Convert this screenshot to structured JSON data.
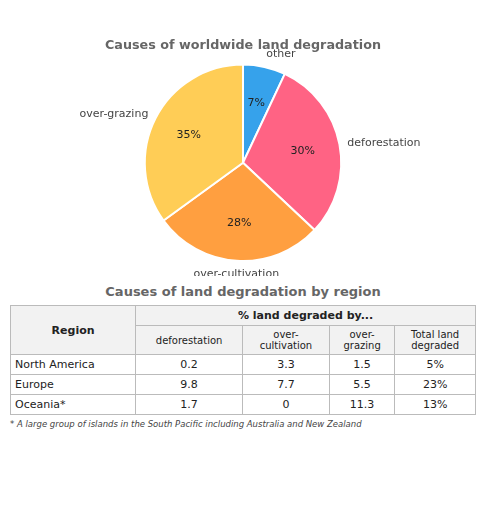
{
  "chart_data": [
    {
      "type": "pie",
      "title": "Causes of worldwide land degradation",
      "categories": [
        "other",
        "deforestation",
        "over-cultivation",
        "over-grazing"
      ],
      "values": [
        7,
        30,
        28,
        35
      ],
      "value_labels": [
        "7%",
        "30%",
        "28%",
        "35%"
      ],
      "data_labels": true
    },
    {
      "type": "table",
      "title": "Causes of land degradation by region",
      "group_header": "% land degraded by...",
      "columns": [
        "Region",
        "deforestation",
        "over-\ncultivation",
        "over-\ngrazing",
        "Total land\ndegraded"
      ],
      "rows": [
        [
          "North America",
          "0.2",
          "3.3",
          "1.5",
          "5%"
        ],
        [
          "Europe",
          "9.8",
          "7.7",
          "5.5",
          "23%"
        ],
        [
          "Oceania*",
          "1.7",
          "0",
          "11.3",
          "13%"
        ]
      ],
      "footnote": "* A large group of islands in the South Pacific including Australia and New Zealand"
    }
  ]
}
